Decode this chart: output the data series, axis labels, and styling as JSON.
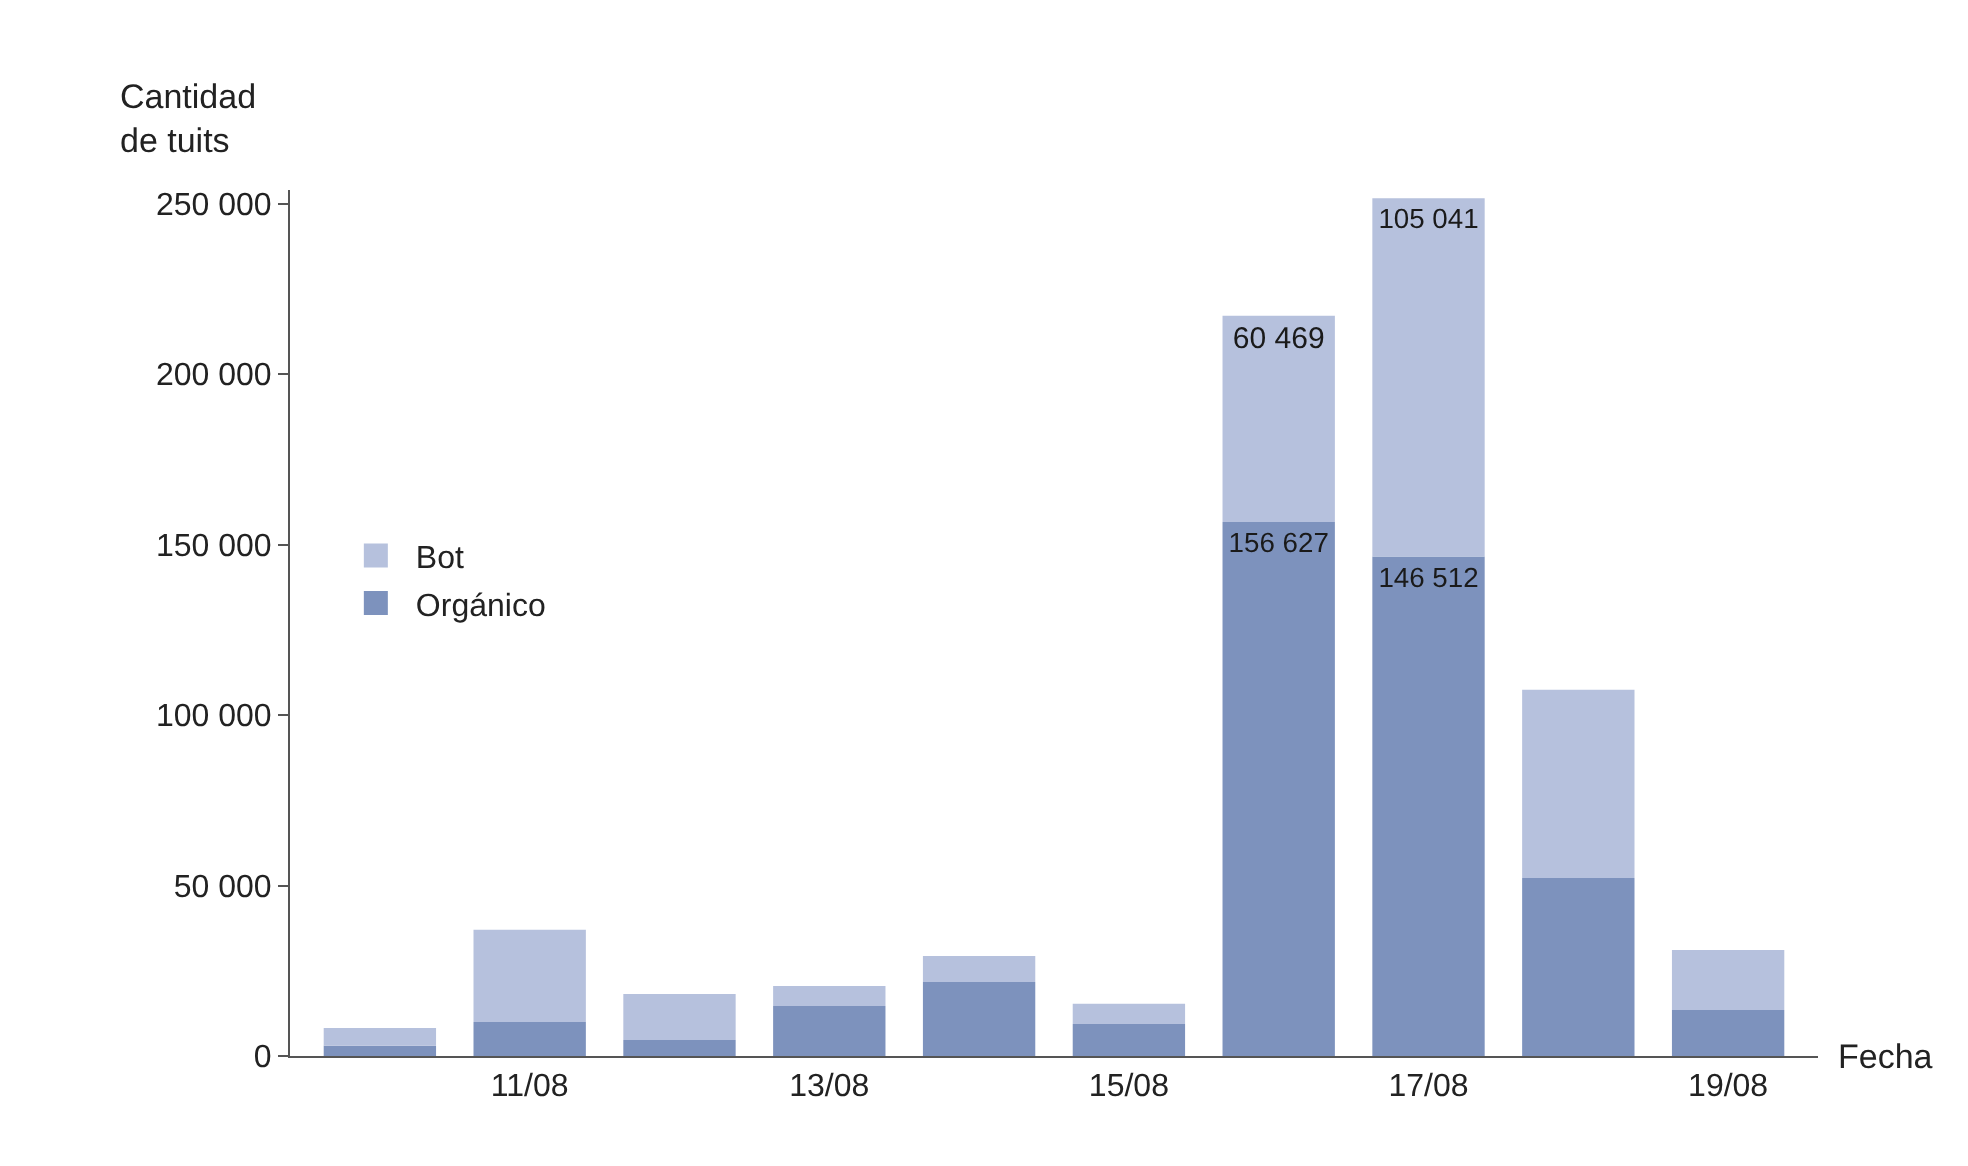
{
  "chart_data": {
    "type": "bar",
    "stacked": true,
    "xlabel": "Fecha",
    "ylabel": "Cantidad de tuits",
    "categories": [
      null,
      "11/08",
      null,
      "13/08",
      null,
      "15/08",
      null,
      "17/08",
      null,
      "19/08"
    ],
    "series": [
      {
        "name": "Orgánico",
        "color": "#7d92bd",
        "values": [
          3000,
          10000,
          4700,
          14700,
          21700,
          9400,
          156627,
          146512,
          52200,
          13500
        ],
        "value_labels": [
          null,
          null,
          null,
          null,
          null,
          null,
          "156 627",
          "146 512",
          null,
          null
        ]
      },
      {
        "name": "Bot",
        "color": "#b6c1dd",
        "values": [
          5200,
          27000,
          13500,
          5800,
          7600,
          5900,
          60469,
          105041,
          55200,
          17600
        ],
        "value_labels": [
          null,
          null,
          null,
          null,
          null,
          null,
          "60 469",
          "105 041",
          null,
          null
        ]
      }
    ],
    "ylim": [
      0,
      254000
    ],
    "yticks": [
      0,
      {
        "value": 50000,
        "label": "50 000"
      },
      {
        "value": 100000,
        "label": "100 000"
      },
      {
        "value": 150000,
        "label": "150 000"
      },
      {
        "value": 200000,
        "label": "200 000"
      },
      {
        "value": 250000,
        "label": "250 000"
      }
    ],
    "legend": "left"
  }
}
